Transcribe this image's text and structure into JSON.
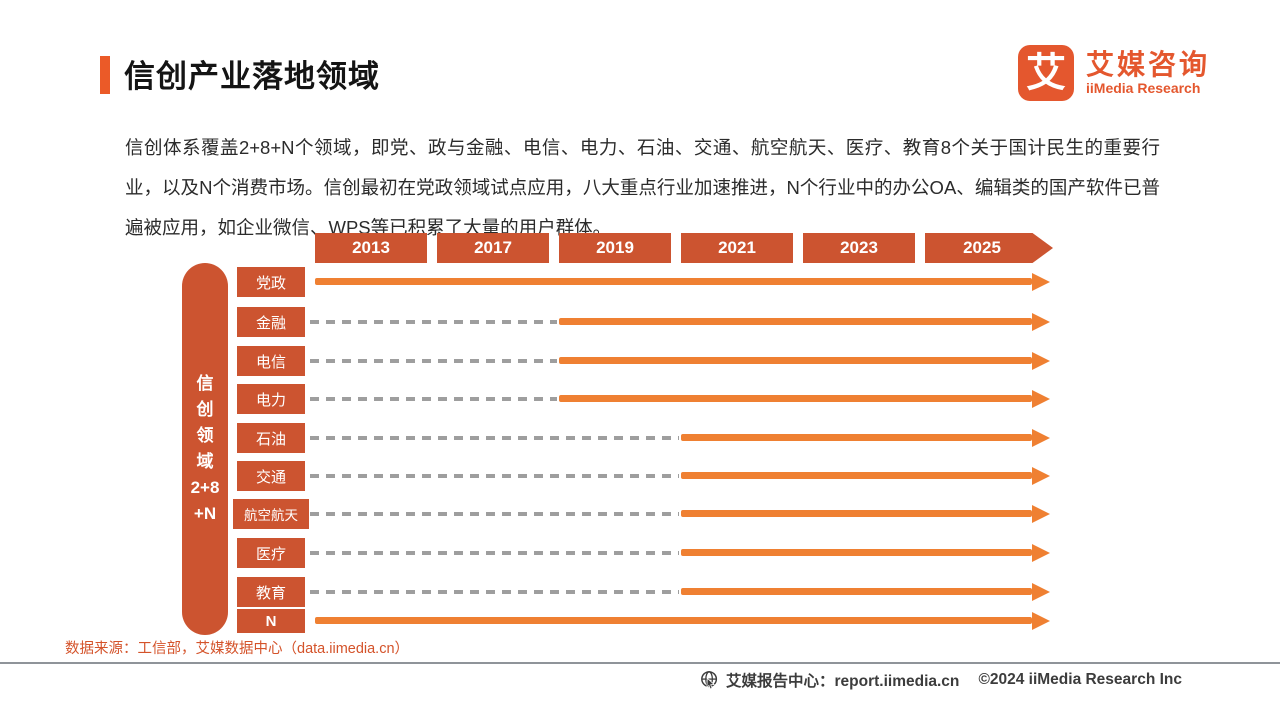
{
  "header": {
    "title": "信创产业落地领域"
  },
  "logo": {
    "mark": "艾",
    "name_cn": "艾媒咨询",
    "name_en": "iiMedia Research"
  },
  "paragraph": "信创体系覆盖2+8+N个领域，即党、政与金融、电信、电力、石油、交通、航空航天、医疗、教育8个关于国计民生的重要行业，以及N个消费市场。信创最初在党政领域试点应用，八大重点行业加速推进，N个行业中的办公OA、编辑类的国产软件已普遍被应用，如企业微信、WPS等已积累了大量的用户群体。",
  "chart_data": {
    "type": "timeline",
    "title": "信创产业落地领域",
    "years": [
      "2013",
      "2017",
      "2019",
      "2021",
      "2023",
      "2025"
    ],
    "axis_label_lines": [
      "信",
      "创",
      "领",
      "域",
      "2+8",
      "+N"
    ],
    "rows": [
      {
        "label": "党政",
        "start_year": "2013"
      },
      {
        "label": "金融",
        "start_year": "2019"
      },
      {
        "label": "电信",
        "start_year": "2019"
      },
      {
        "label": "电力",
        "start_year": "2019"
      },
      {
        "label": "石油",
        "start_year": "2021"
      },
      {
        "label": "交通",
        "start_year": "2021"
      },
      {
        "label": "航空航天",
        "start_year": "2021"
      },
      {
        "label": "医疗",
        "start_year": "2021"
      },
      {
        "label": "教育",
        "start_year": "2021"
      },
      {
        "label": "N",
        "start_year": "2013"
      }
    ],
    "legend": "dashed segment = before adoption, solid orange arrow = adoption period extending to 2025+",
    "colors": {
      "arrow": "#EF8032",
      "box": "#CC5430",
      "dash": "#9E9E9E",
      "brand": "#E4572E"
    }
  },
  "source": "数据来源：工信部，艾媒数据中心（data.iimedia.cn）",
  "footer": {
    "report_center": "艾媒报告中心：report.iimedia.cn",
    "copyright": "©2024  iiMedia Research Inc"
  }
}
